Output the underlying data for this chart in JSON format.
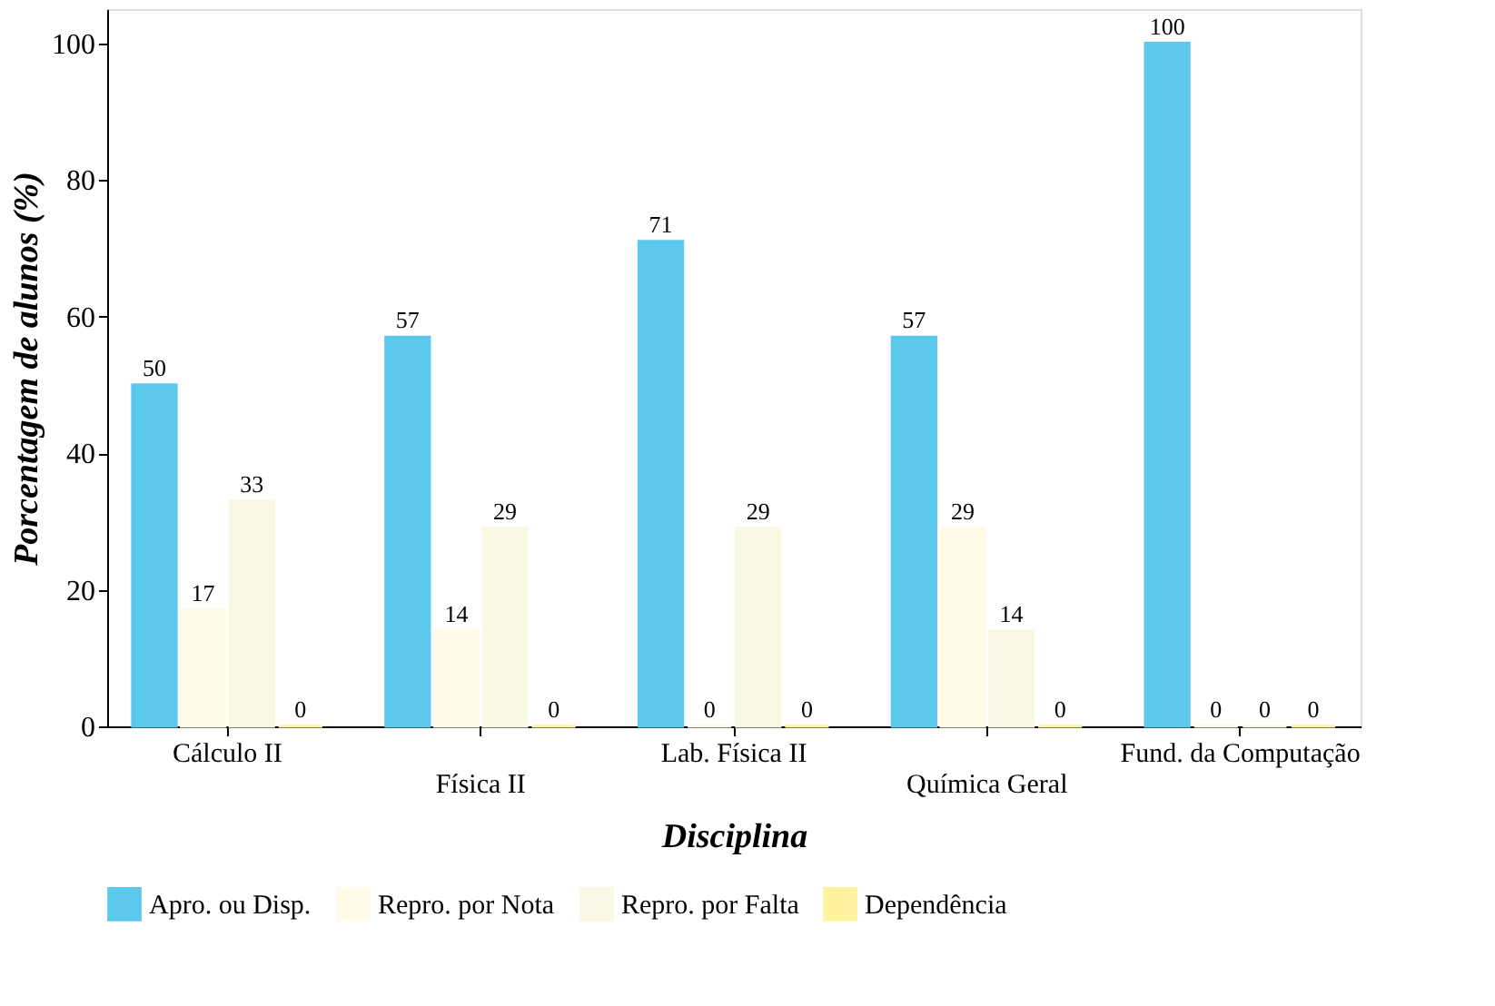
{
  "chart_data": {
    "type": "bar",
    "xlabel": "Disciplina",
    "ylabel": "Porcentagem de alunos (%)",
    "categories": [
      "Cálculo II",
      "Física II",
      "Lab. Física II",
      "Química Geral",
      "Fund. da Computação"
    ],
    "series": [
      {
        "name": "Apro. ou Disp.",
        "color": "#5bc8ec",
        "values": [
          50,
          57,
          71,
          57,
          100
        ]
      },
      {
        "name": "Repro. por Nota",
        "color": "#fffbe8",
        "values": [
          17,
          14,
          0,
          29,
          0
        ]
      },
      {
        "name": "Repro. por Falta",
        "color": "#f8f8e4",
        "values": [
          33,
          29,
          29,
          14,
          0
        ]
      },
      {
        "name": "Dependência",
        "color": "#fff3a0",
        "values": [
          0,
          0,
          0,
          0,
          0
        ]
      }
    ],
    "ylim": [
      0,
      105
    ],
    "yticks": [
      0,
      20,
      40,
      60,
      80,
      100
    ],
    "grid": false,
    "legend": "bottom",
    "data_labels": true
  }
}
